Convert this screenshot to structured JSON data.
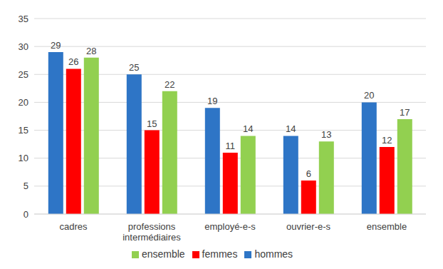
{
  "chart_data": {
    "type": "bar",
    "categories": [
      "cadres",
      "professions intermédiaires",
      "employé-e-s",
      "ouvrier-e-s",
      "ensemble"
    ],
    "series": [
      {
        "name": "hommes",
        "color": "#2e75c6",
        "values": [
          29,
          25,
          19,
          14,
          20
        ]
      },
      {
        "name": "femmes",
        "color": "#ff0000",
        "values": [
          26,
          15,
          11,
          6,
          12
        ]
      },
      {
        "name": "ensemble",
        "color": "#92d050",
        "values": [
          28,
          22,
          14,
          13,
          17
        ]
      }
    ],
    "ylim": [
      0,
      35
    ],
    "yticks": [
      0,
      5,
      10,
      15,
      20,
      25,
      30,
      35
    ],
    "grid": true,
    "legend": "bottom",
    "data_labels": true
  }
}
